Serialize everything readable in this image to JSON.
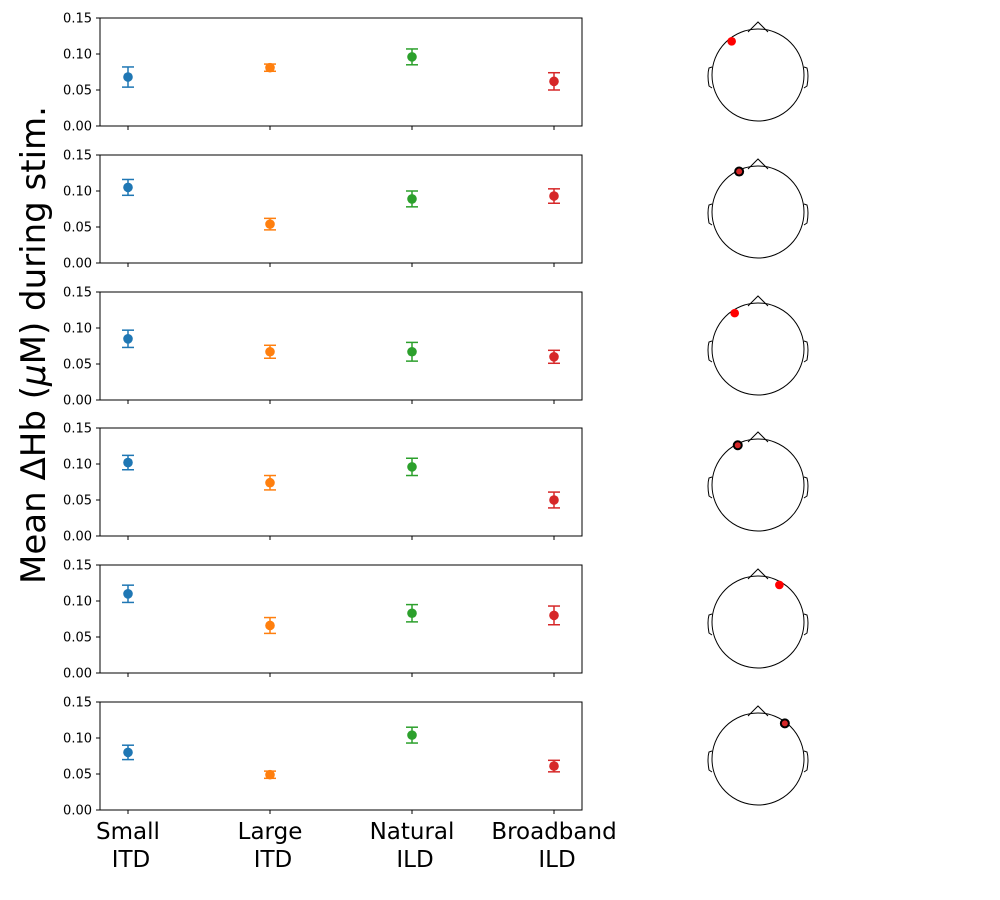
{
  "chart_data": {
    "type": "scatter",
    "ylabel_pre": "Mean ΔHb (",
    "ylabel_mu": "μ",
    "ylabel_post": "M) during stim.",
    "categories": [
      {
        "line1": "Small",
        "line2": "ITD"
      },
      {
        "line1": "Large",
        "line2": "ITD"
      },
      {
        "line1": "Natural",
        "line2": "ILD"
      },
      {
        "line1": "Broadband",
        "line2": "ILD"
      }
    ],
    "colors": [
      "#1f77b4",
      "#ff7f0e",
      "#2ca02c",
      "#d62728"
    ],
    "ylim": [
      0,
      0.15
    ],
    "yticks": [
      "0.00",
      "0.05",
      "0.10",
      "0.15"
    ],
    "panels": [
      {
        "values": [
          0.068,
          0.081,
          0.096,
          0.062
        ],
        "errors": [
          0.014,
          0.005,
          0.011,
          0.012
        ],
        "channel": {
          "angle": -38,
          "marker": "red"
        }
      },
      {
        "values": [
          0.105,
          0.054,
          0.089,
          0.093
        ],
        "errors": [
          0.011,
          0.008,
          0.011,
          0.01
        ],
        "channel": {
          "angle": -25,
          "marker": "dark"
        }
      },
      {
        "values": [
          0.085,
          0.067,
          0.067,
          0.06
        ],
        "errors": [
          0.012,
          0.009,
          0.013,
          0.009
        ],
        "channel": {
          "angle": -33,
          "marker": "red"
        }
      },
      {
        "values": [
          0.102,
          0.074,
          0.096,
          0.05
        ],
        "errors": [
          0.01,
          0.01,
          0.012,
          0.011
        ],
        "channel": {
          "angle": -27,
          "marker": "dark"
        }
      },
      {
        "values": [
          0.11,
          0.066,
          0.083,
          0.08
        ],
        "errors": [
          0.012,
          0.011,
          0.012,
          0.013
        ],
        "channel": {
          "angle": 30,
          "marker": "red"
        }
      },
      {
        "values": [
          0.08,
          0.049,
          0.104,
          0.061
        ],
        "errors": [
          0.01,
          0.005,
          0.011,
          0.008
        ],
        "channel": {
          "angle": 37,
          "marker": "dark"
        }
      }
    ]
  }
}
